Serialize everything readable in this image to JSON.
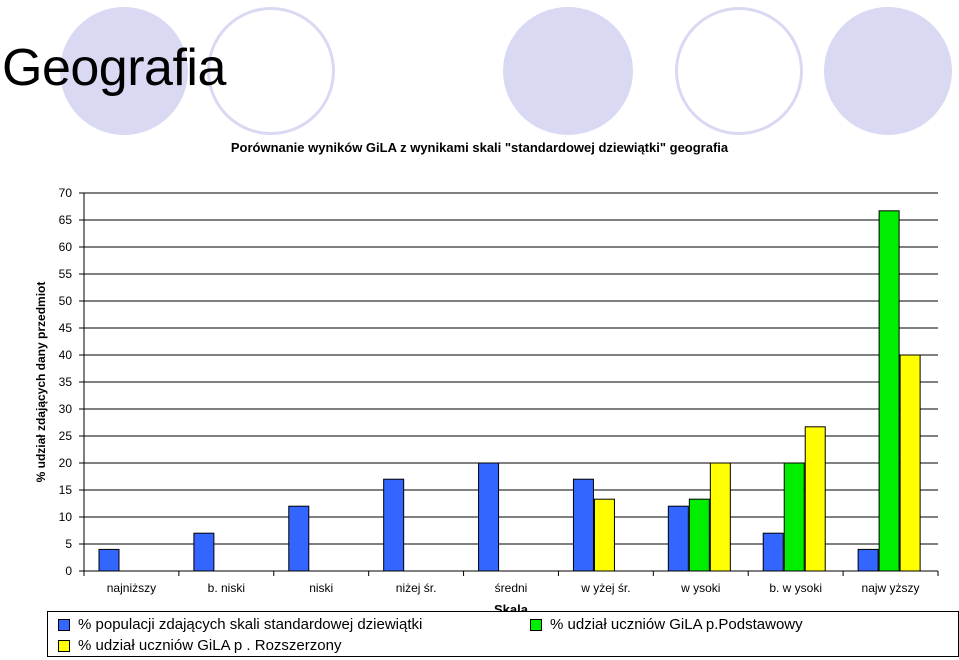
{
  "slide": {
    "title": "Geografia"
  },
  "chart_data": {
    "type": "bar",
    "title": "Porównanie wyników GiLA z wynikami skali \"standardowej dziewiątki\" geografia",
    "xlabel": "Skala",
    "ylabel": "% udział zdających dany przedmiot",
    "ylim": [
      0,
      70
    ],
    "yticks": [
      0,
      5,
      10,
      15,
      20,
      25,
      30,
      35,
      40,
      45,
      50,
      55,
      60,
      65,
      70
    ],
    "grid": true,
    "legend_position": "bottom",
    "categories": [
      "najniższy",
      "b. niski",
      "niski",
      "niżej śr.",
      "średni",
      "w yżej śr.",
      "w ysoki",
      "b. w ysoki",
      "najw yższy"
    ],
    "series": [
      {
        "name": "% populacji zdających skali standardowej dziewiątki",
        "color": "#3366ff",
        "values": [
          4,
          7,
          12,
          17,
          20,
          17,
          12,
          7,
          4
        ]
      },
      {
        "name": "% udział uczniów GiLA p.Podstawowy",
        "color": "#00ee00",
        "values": [
          0,
          0,
          0,
          0,
          0,
          0,
          13.3,
          20,
          66.7
        ]
      },
      {
        "name": "% udział uczniów GiLA p . Rozszerzony",
        "color": "#ffff00",
        "values": [
          0,
          0,
          0,
          0,
          0,
          13.3,
          20,
          26.7,
          40
        ]
      }
    ]
  }
}
